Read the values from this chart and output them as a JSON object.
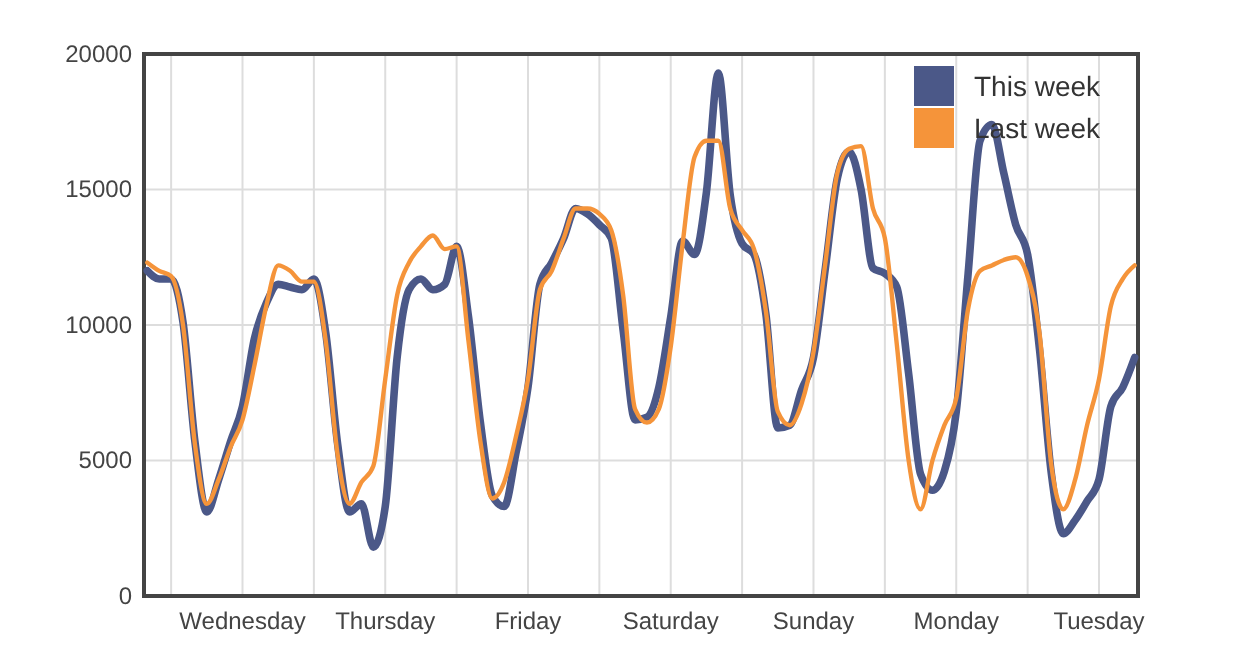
{
  "chart_data": {
    "type": "line",
    "categories": [
      null,
      null,
      null,
      null,
      null,
      null,
      null,
      null,
      "Wednesday",
      null,
      null,
      null,
      null,
      null,
      null,
      null,
      null,
      null,
      null,
      null,
      "Thursday",
      null,
      null,
      null,
      null,
      null,
      null,
      null,
      null,
      null,
      null,
      null,
      "Friday",
      null,
      null,
      null,
      null,
      null,
      null,
      null,
      null,
      null,
      null,
      null,
      "Saturday",
      null,
      null,
      null,
      null,
      null,
      null,
      null,
      null,
      null,
      null,
      null,
      "Sunday",
      null,
      null,
      null,
      null,
      null,
      null,
      null,
      null,
      null,
      null,
      null,
      "Monday",
      null,
      null,
      null,
      null,
      null,
      null,
      null,
      null,
      null,
      null,
      null,
      "Tuesday",
      null,
      null,
      null
    ],
    "ylim": [
      0,
      20000
    ],
    "yticks": [
      0,
      5000,
      10000,
      15000,
      20000
    ],
    "grid": true,
    "legend": "top right",
    "marker": "none",
    "line_style": "solid",
    "series": [
      {
        "name": "This week",
        "color": "#4b5888",
        "values": [
          12000,
          11700,
          11700,
          10100,
          5700,
          3100,
          4300,
          5700,
          7000,
          9500,
          10800,
          11500,
          11400,
          11300,
          11700,
          9700,
          5600,
          3100,
          3400,
          1800,
          3300,
          8800,
          11300,
          11700,
          11300,
          11500,
          12900,
          10300,
          6400,
          3700,
          3300,
          5300,
          7700,
          11500,
          12300,
          13200,
          14300,
          14100,
          13700,
          13200,
          9800,
          6500,
          6600,
          7700,
          10300,
          13100,
          12600,
          14900,
          19300,
          14800,
          13000,
          12600,
          10400,
          6200,
          6300,
          7600,
          8800,
          12100,
          15400,
          16400,
          15000,
          12100,
          11900,
          11400,
          8200,
          4500,
          3900,
          4600,
          6800,
          11900,
          16800,
          17400,
          15600,
          13700,
          12600,
          9100,
          4500,
          2300,
          2800,
          3500,
          4300,
          7000,
          7700,
          8800
        ]
      },
      {
        "name": "Last week",
        "color": "#f5943a",
        "values": [
          12300,
          12000,
          11800,
          10000,
          5600,
          3400,
          4300,
          5500,
          6500,
          8500,
          10700,
          12200,
          12000,
          11600,
          11600,
          9400,
          5200,
          3400,
          4200,
          4800,
          8000,
          11100,
          12300,
          12900,
          13300,
          12800,
          12900,
          9400,
          5700,
          3600,
          4200,
          5900,
          8000,
          11300,
          12000,
          13200,
          14300,
          14300,
          14100,
          13500,
          11100,
          6900,
          6400,
          6900,
          9200,
          13000,
          16200,
          16800,
          16800,
          14300,
          13500,
          12800,
          10500,
          6800,
          6300,
          7100,
          9000,
          12300,
          15600,
          16500,
          16600,
          14300,
          13200,
          9300,
          5000,
          3200,
          5000,
          6300,
          7300,
          10600,
          12000,
          12200,
          12400,
          12500,
          11800,
          9700,
          4800,
          3200,
          4300,
          6300,
          8000,
          10700,
          11700,
          12200
        ]
      }
    ]
  }
}
